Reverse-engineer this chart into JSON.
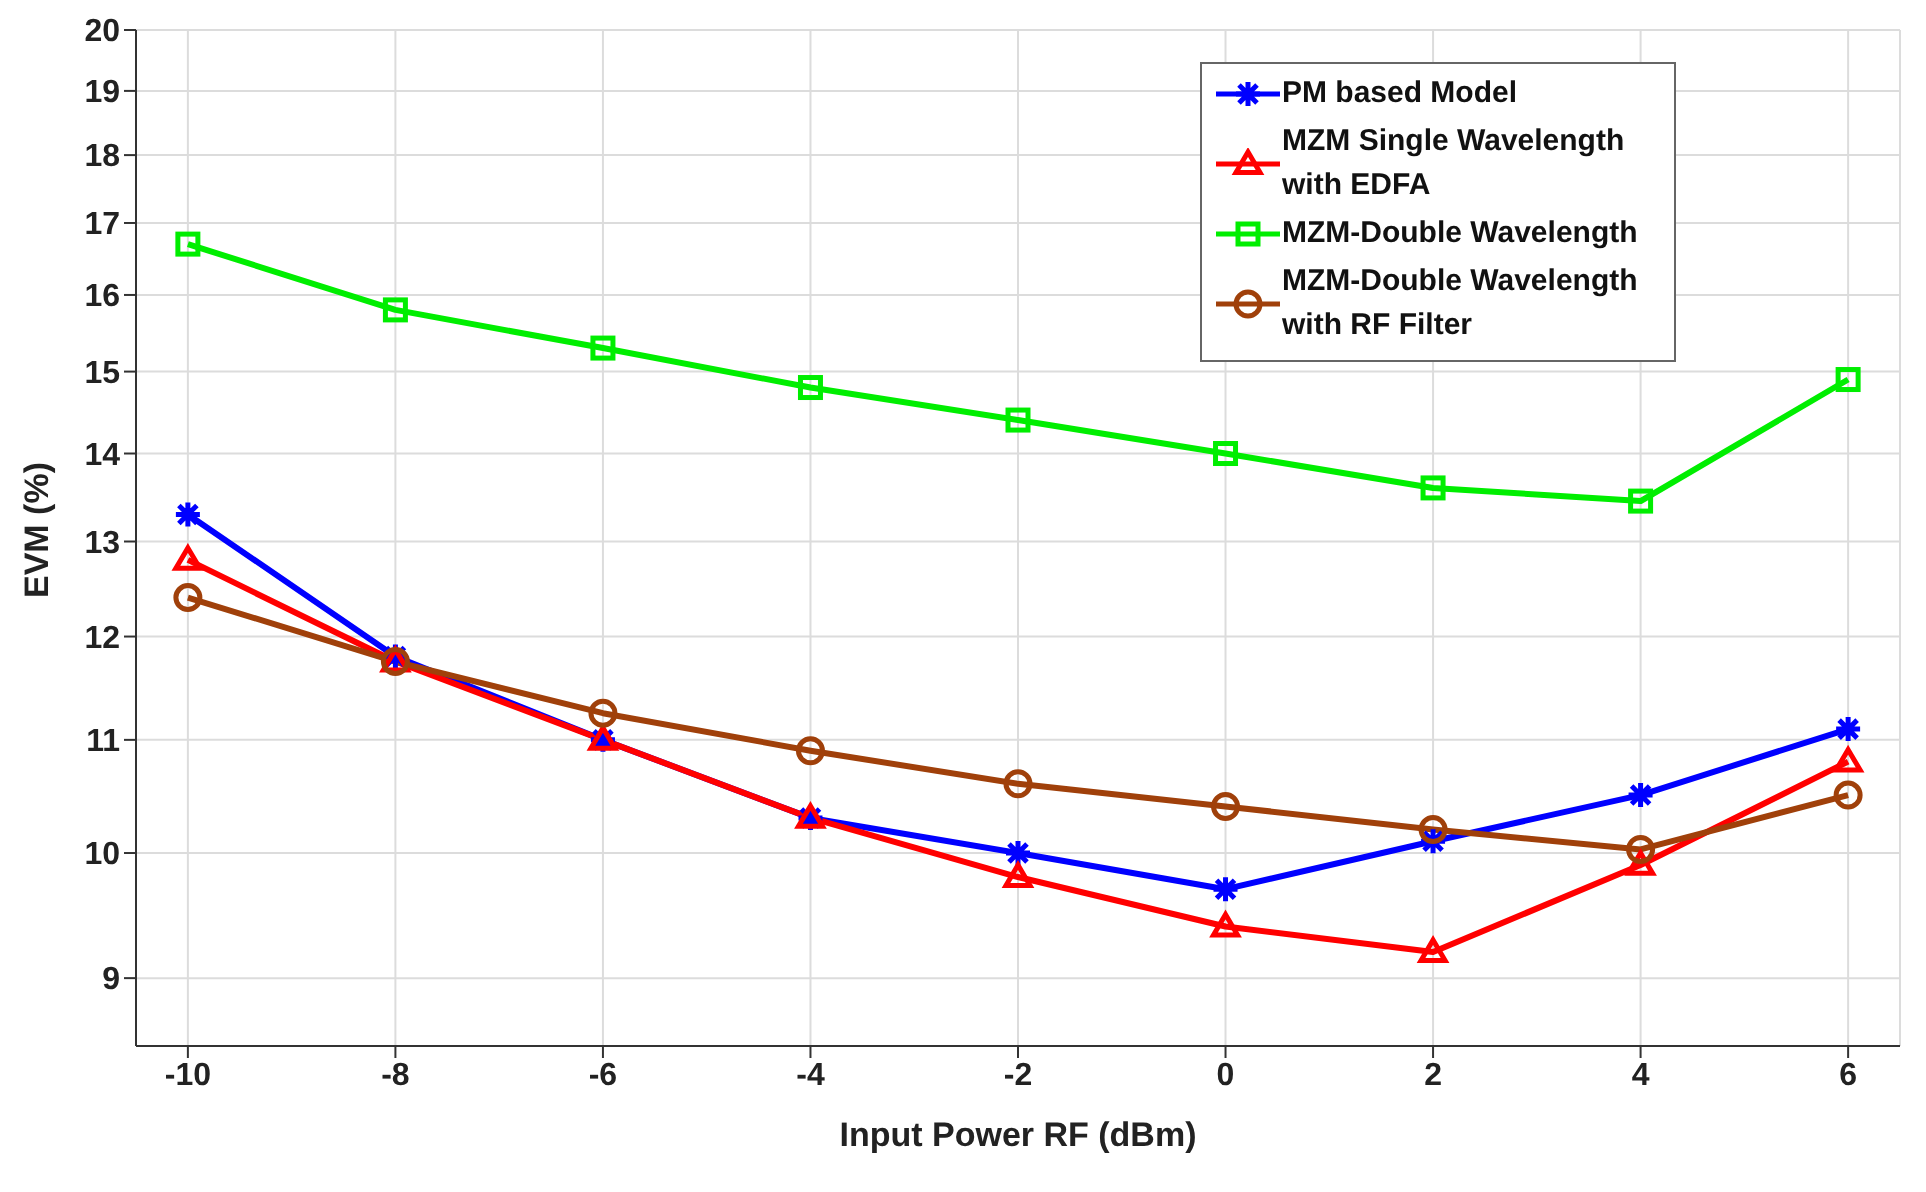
{
  "chart_data": {
    "type": "line",
    "xlabel": "Input Power RF (dBm)",
    "ylabel": "EVM (%)",
    "x": [
      -10,
      -8,
      -6,
      -4,
      -2,
      0,
      2,
      4,
      6
    ],
    "xlim": [
      -10.5,
      6.5
    ],
    "xticks": [
      -10,
      -8,
      -6,
      -4,
      -2,
      0,
      2,
      4,
      6
    ],
    "ylim": [
      8.5,
      20
    ],
    "yticks": [
      9,
      10,
      11,
      12,
      13,
      14,
      15,
      16,
      17,
      18,
      19,
      20
    ],
    "log": "y",
    "grid": true,
    "legend": "top right",
    "line_style": "solid",
    "series": [
      {
        "name": "PM based Model",
        "color": "#0000ff",
        "marker": "cross",
        "values": [
          13.3,
          11.8,
          11.0,
          10.3,
          10.0,
          9.7,
          10.1,
          10.5,
          11.1
        ]
      },
      {
        "name": "MZM Single Wavelength with EDFA",
        "color": "#ff0000",
        "marker": "triangle",
        "values": [
          12.8,
          11.75,
          11.0,
          10.3,
          9.8,
          9.4,
          9.2,
          9.9,
          10.8
        ]
      },
      {
        "name": "MZM-Double Wavelength",
        "color": "#00ee00",
        "marker": "square",
        "values": [
          16.7,
          15.8,
          15.3,
          14.8,
          14.4,
          14.0,
          13.6,
          13.45,
          14.9
        ]
      },
      {
        "name": "MZM-Double Wavelength with RF Filter",
        "color": "#a0400a",
        "marker": "circle",
        "values": [
          12.4,
          11.75,
          11.25,
          10.9,
          10.6,
          10.4,
          10.2,
          10.03,
          10.5
        ]
      }
    ]
  }
}
